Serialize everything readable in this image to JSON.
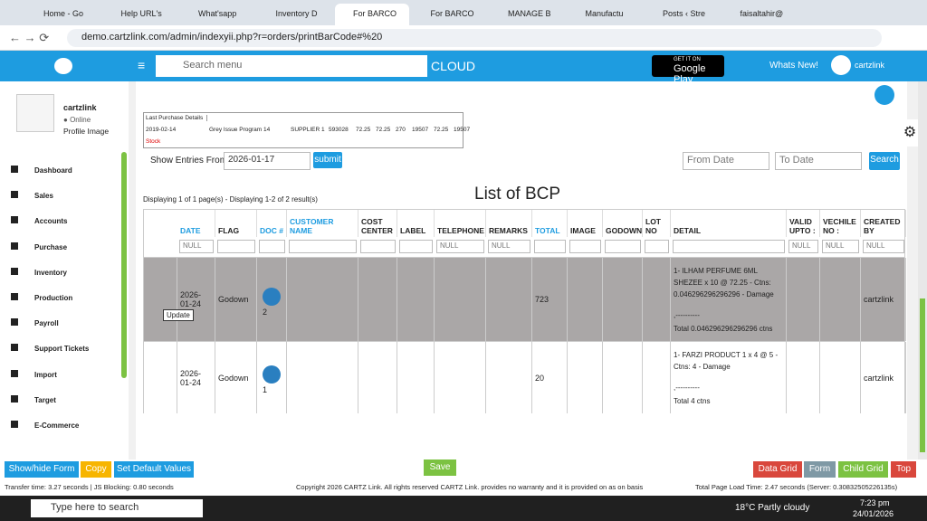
{
  "browser": {
    "tabs": [
      "Home - Go",
      "Help URL's",
      "What'sapp",
      "Inventory D",
      "For BARCO",
      "For BARCO",
      "MANAGE B",
      "Manufactu",
      "Posts ‹ Stre",
      "faisaltahir@"
    ],
    "url": "demo.cartzlink.com/admin/indexyii.php?r=orders/printBarCode#%20"
  },
  "header": {
    "search_placeholder": "Search menu",
    "cloud": "CLOUD",
    "play_small": "GET IT ON",
    "play_big": "Google Play",
    "whats_new": "Whats New!",
    "user": "cartzlink"
  },
  "sidebar": {
    "user": "cartzlink",
    "status": "Online",
    "profile": "Profile Image",
    "menu": [
      "Dashboard",
      "Sales",
      "Accounts",
      "Purchase",
      "Inventory",
      "Production",
      "Payroll",
      "Support Tickets",
      "Import",
      "Target",
      "E-Commerce"
    ]
  },
  "last_purchase": {
    "title": "Last Purchase Details",
    "row": [
      "2019-02-14",
      "Grey Issue Program 14",
      "SUPPLIER 1",
      "593028",
      "72.25",
      "72.25",
      "270",
      "19507",
      "72.25",
      "19507"
    ],
    "stock": "Stock"
  },
  "filters": {
    "show_entries": "Show Entries From",
    "date": "2026-01-17",
    "submit": "submit",
    "from": "From Date",
    "to": "To Date",
    "search": "Search"
  },
  "summary": "Displaying 1 of 1 page(s) - Displaying 1-2 of 2 result(s)",
  "table": {
    "title": "List of BCP",
    "columns": [
      "DATE",
      "FLAG",
      "DOC #",
      "CUSTOMER NAME",
      "COST CENTER",
      "LABEL",
      "TELEPHONE",
      "REMARKS",
      "TOTAL",
      "IMAGE",
      "GODOWN",
      "LOT NO",
      "DETAIL",
      "VALID UPTO :",
      "VECHILE NO :",
      "CREATED BY"
    ],
    "filter_placeholder": "NULL",
    "rows": [
      {
        "date": "2026-01-24",
        "flag": "Godown",
        "doc": "2",
        "total": "723",
        "detail": [
          "1- ILHAM PERFUME 6ML SHEZEE x 10 @ 72.25 - Ctns: 0.046296296296296 - Damage",
          ",----------",
          "Total 0.046296296296296 ctns"
        ],
        "created_by": "cartzlink"
      },
      {
        "date": "2026-01-24",
        "flag": "Godown",
        "doc": "1",
        "total": "20",
        "detail": [
          "1- FARZI PRODUCT 1 x 4 @ 5 - Ctns: 4 - Damage",
          ",----------",
          "Total 4 ctns"
        ],
        "created_by": "cartzlink"
      }
    ],
    "tooltip": "Update"
  },
  "footer": {
    "left_buttons": [
      "Show/hide Form",
      "Copy",
      "Set Default Values"
    ],
    "save": "Save",
    "right_buttons": [
      "Data Grid",
      "Form",
      "Child Grid",
      "Top"
    ],
    "transfer": "Transfer time: 3.27 seconds | JS Blocking: 0.80 seconds",
    "copyright": "Copyright 2026 CARTZ Link. All rights reserved CARTZ Link. provides no warranty and it is provided on as on basis",
    "load": "Total Page Load Time: 2.47 seconds (Server: 0.30832505226135s)"
  },
  "taskbar": {
    "search": "Type here to search",
    "weather": "18°C  Partly cloudy",
    "time": "7:23 pm",
    "date": "24/01/2026"
  }
}
